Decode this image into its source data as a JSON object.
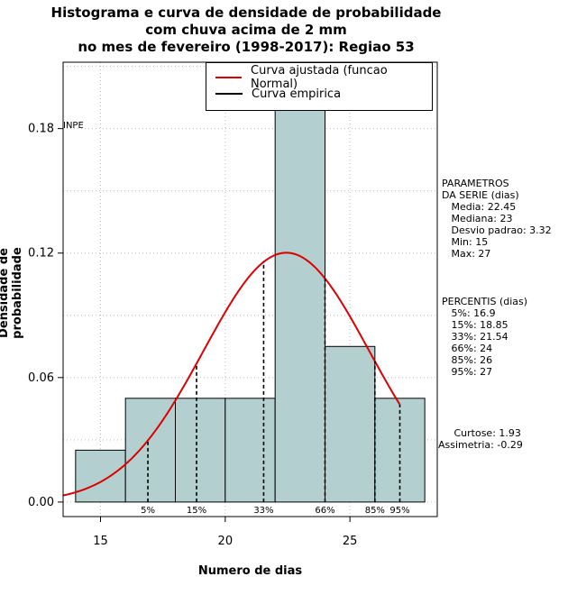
{
  "chart_data": {
    "type": "histogram",
    "title_lines": [
      "Histograma e curva de densidade de probabilidade",
      "com chuva acima de 2 mm",
      "no mes de fevereiro (1998-2017): Regiao 53"
    ],
    "xlabel": "Numero de dias",
    "ylabel": "Densidade de probabilidade",
    "xlim": [
      13.5,
      28.5
    ],
    "ylim": [
      -0.007,
      0.212
    ],
    "x_ticks": [
      15,
      20,
      25
    ],
    "y_ticks": [
      "0.00",
      "0.06",
      "0.12",
      "0.18"
    ],
    "grid": true,
    "bins": [
      {
        "start": 14,
        "end": 16,
        "density": 0.025
      },
      {
        "start": 16,
        "end": 18,
        "density": 0.05
      },
      {
        "start": 18,
        "end": 20,
        "density": 0.05
      },
      {
        "start": 20,
        "end": 22,
        "density": 0.05
      },
      {
        "start": 22,
        "end": 24,
        "density": 0.2
      },
      {
        "start": 24,
        "end": 26,
        "density": 0.075
      },
      {
        "start": 26,
        "end": 28,
        "density": 0.05
      }
    ],
    "normal_fit": {
      "mean": 22.45,
      "sd": 3.32,
      "x_from": 13.5,
      "x_to": 27,
      "color": "#dd0000"
    },
    "percentile_lines": [
      {
        "label": "5%",
        "x": 16.9
      },
      {
        "label": "15%",
        "x": 18.85
      },
      {
        "label": "33%",
        "x": 21.54
      },
      {
        "label": "66%",
        "x": 24
      },
      {
        "label": "85%",
        "x": 26
      },
      {
        "label": "95%",
        "x": 27
      }
    ],
    "legend": {
      "position": "top-right",
      "items": [
        {
          "label": "Curva ajustada (funcao Normal)",
          "color": "#dd0000"
        },
        {
          "label": "Curva empirica",
          "color": "#000000"
        }
      ]
    },
    "watermark_text": "INPE",
    "bar_color": "#b4cfcf"
  },
  "side_panel": {
    "parametros": "PARAMETROS\nDA SERIE (dias)\n   Media: 22.45\n   Mediana: 23\n   Desvio padrao: 3.32\n   Min: 15\n   Max: 27",
    "percentis": "PERCENTIS (dias)\n   5%: 16.9\n   15%: 18.85\n   33%: 21.54\n   66%: 24\n   85%: 26\n   95%: 27",
    "shape": "     Curtose: 1.93\nAssimetria: -0.29"
  }
}
